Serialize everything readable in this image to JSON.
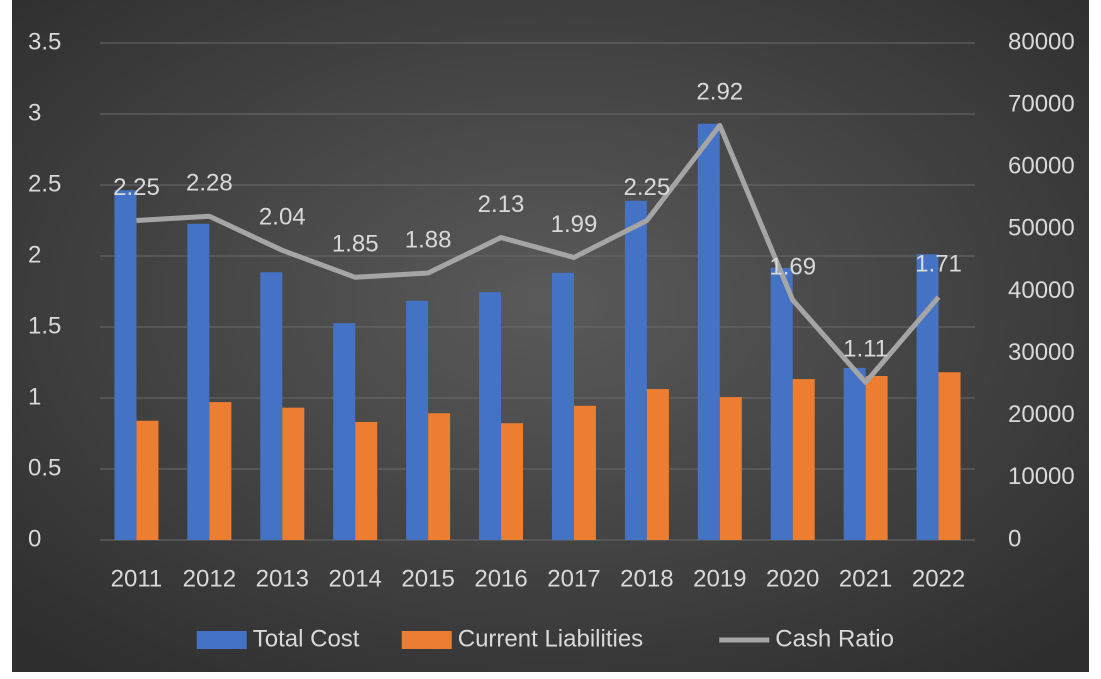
{
  "chart_data": {
    "type": "bar",
    "categories": [
      "2011",
      "2012",
      "2013",
      "2014",
      "2015",
      "2016",
      "2017",
      "2018",
      "2019",
      "2020",
      "2021",
      "2022"
    ],
    "series": [
      {
        "name": "Total Cost",
        "color": "#4472c4",
        "type": "bar",
        "axis": "y2",
        "values": [
          56300,
          50900,
          43100,
          34900,
          38500,
          39900,
          43000,
          54600,
          67000,
          43800,
          27700,
          46000
        ]
      },
      {
        "name": "Current Liabilities",
        "color": "#ed7d31",
        "type": "bar",
        "axis": "y2",
        "values": [
          19200,
          22200,
          21300,
          19000,
          20400,
          18800,
          21600,
          24300,
          23000,
          25900,
          26400,
          27000
        ]
      },
      {
        "name": "Cash Ratio",
        "color": "#a5a5a5",
        "type": "line",
        "axis": "y",
        "values": [
          2.25,
          2.28,
          2.04,
          1.85,
          1.88,
          2.13,
          1.99,
          2.25,
          2.92,
          1.69,
          1.11,
          1.71
        ]
      }
    ],
    "ylim": [
      0,
      3.5
    ],
    "yticks": [
      0,
      0.5,
      1,
      1.5,
      2,
      2.5,
      3,
      3.5
    ],
    "y2lim": [
      0,
      80000
    ],
    "y2ticks": [
      0,
      10000,
      20000,
      30000,
      40000,
      50000,
      60000,
      70000,
      80000
    ],
    "grid": true,
    "legend": "bottom"
  }
}
